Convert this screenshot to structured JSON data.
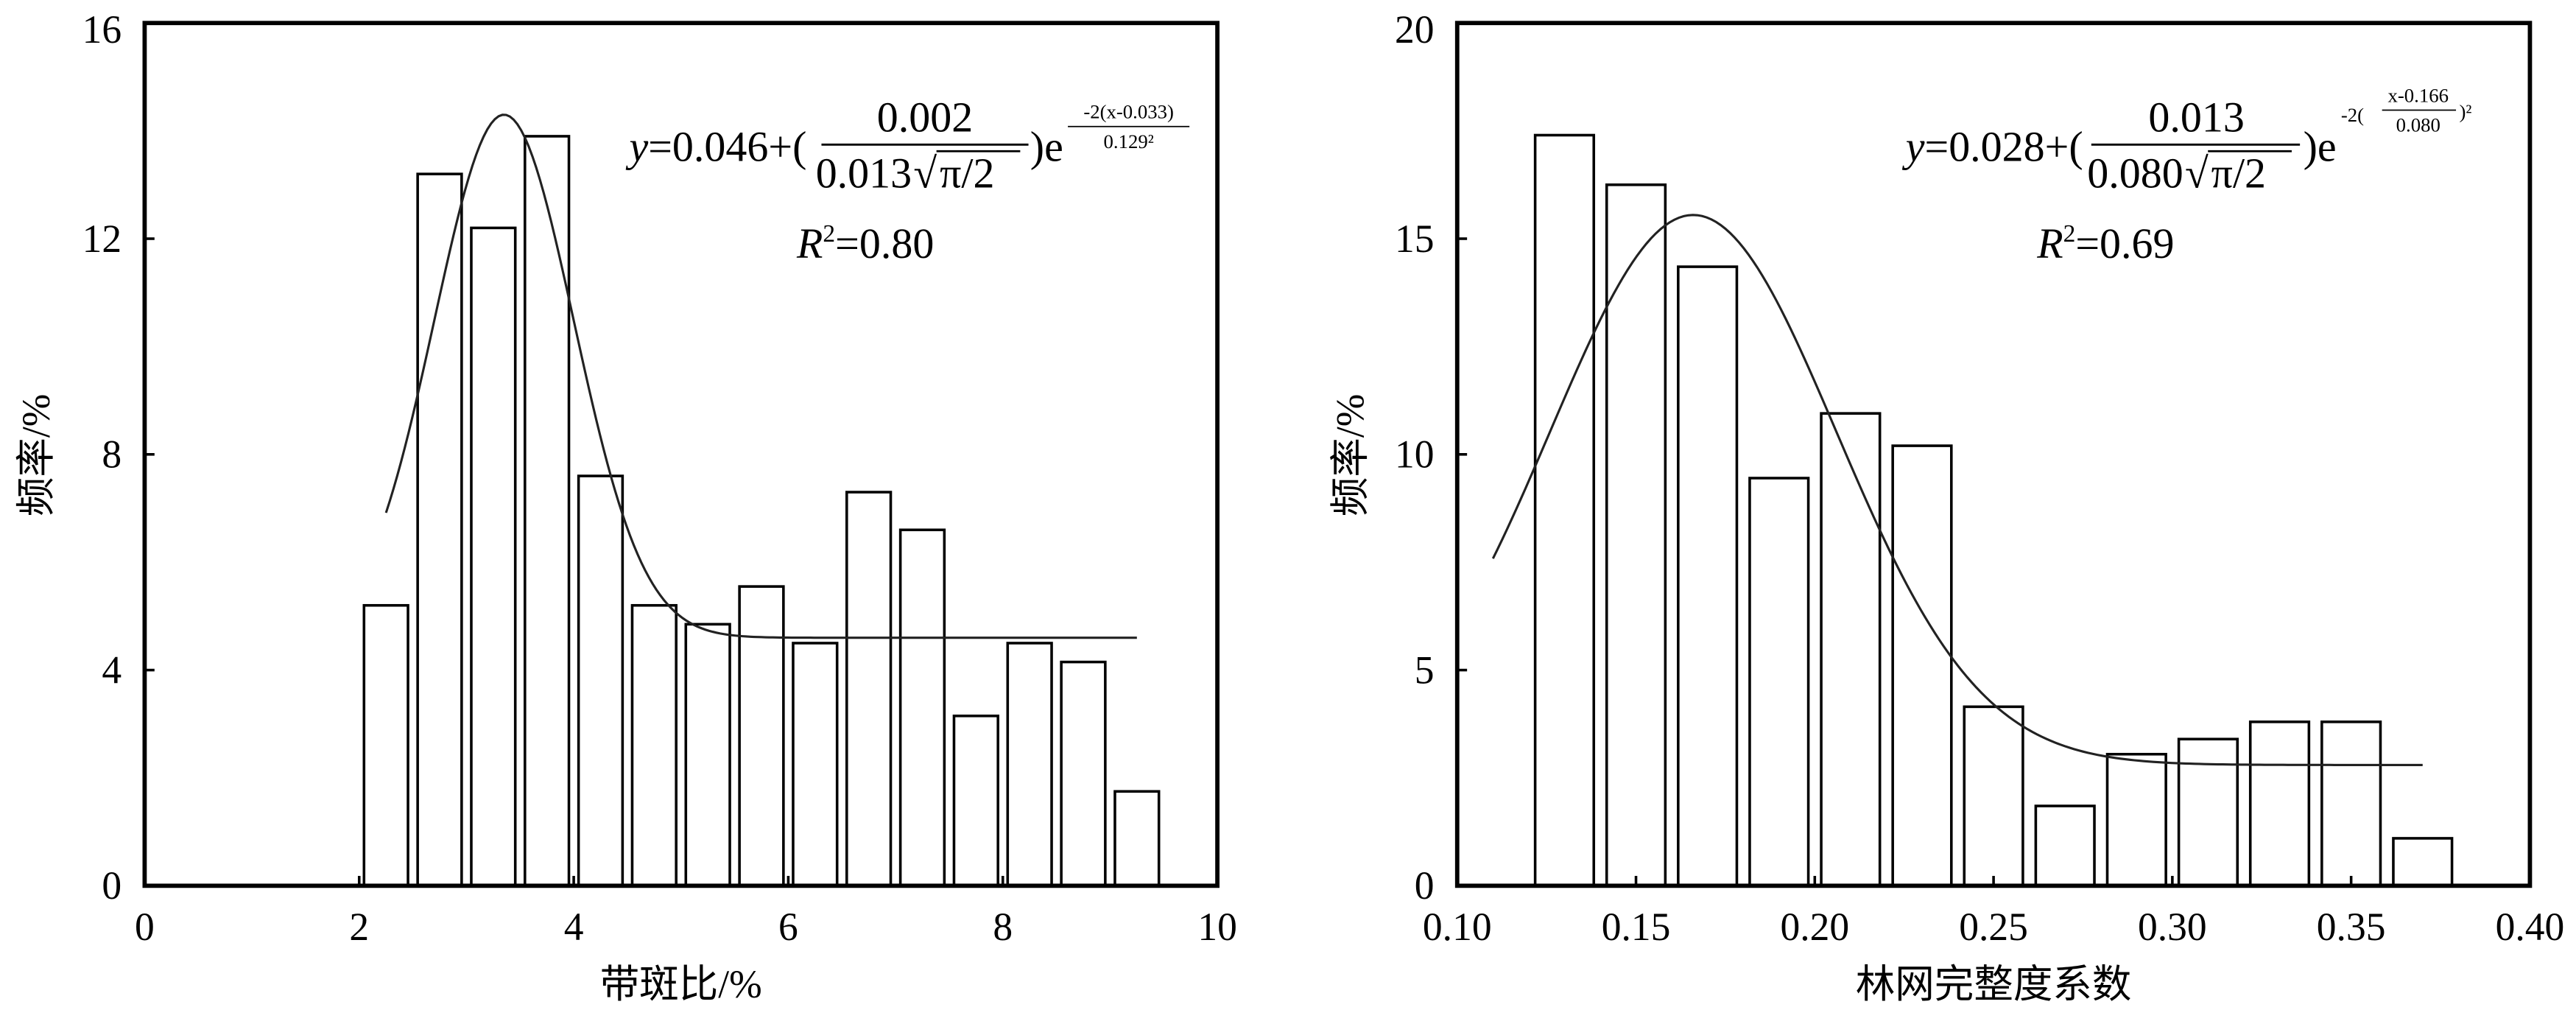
{
  "chart_data": [
    {
      "type": "bar",
      "xlabel": "带斑比/%",
      "ylabel": "频率/%",
      "xlim": [
        0,
        10
      ],
      "ylim": [
        0,
        16
      ],
      "xticks": [
        "0",
        "2",
        "4",
        "6",
        "8",
        "10"
      ],
      "yticks": [
        "0",
        "4",
        "8",
        "12",
        "16"
      ],
      "bin_width": 0.5,
      "bins_start": [
        2.0,
        2.5,
        3.0,
        3.5,
        4.0,
        4.5,
        5.0,
        5.5,
        6.0,
        6.5,
        7.0,
        7.5,
        8.0,
        8.5,
        9.0
      ],
      "values": [
        5.2,
        13.2,
        12.2,
        13.9,
        7.6,
        5.2,
        4.85,
        5.55,
        4.5,
        7.3,
        6.6,
        3.15,
        4.5,
        4.15,
        1.75
      ],
      "fit_curve": {
        "base": 4.6,
        "amp": 9.7,
        "center": 3.35,
        "width": 1.3,
        "x_range": [
          2.25,
          9.25
        ]
      },
      "equation": {
        "lhs": "y",
        "prefix": "=0.046+(",
        "numerator": "0.002",
        "denominator": "0.013",
        "radical": "π/2",
        "suffix": ")e",
        "exp_numerator": "-2(x-0.033)",
        "exp_denominator": "0.129²"
      },
      "r2": {
        "label": "R",
        "sup": "2",
        "value": "=0.80"
      }
    },
    {
      "type": "bar",
      "xlabel": "林网完整度系数",
      "ylabel": "频率/%",
      "xlim": [
        0.1,
        0.4
      ],
      "ylim": [
        0,
        20
      ],
      "xticks": [
        "0.10",
        "0.15",
        "0.20",
        "0.25",
        "0.30",
        "0.35",
        "0.40"
      ],
      "yticks": [
        "0",
        "5",
        "10",
        "15",
        "20"
      ],
      "bin_width": 0.02,
      "bins_start": [
        0.12,
        0.14,
        0.16,
        0.18,
        0.2,
        0.22,
        0.24,
        0.26,
        0.28,
        0.3,
        0.32,
        0.34,
        0.36
      ],
      "values": [
        17.4,
        16.25,
        14.35,
        9.45,
        10.95,
        10.2,
        4.15,
        1.85,
        3.05,
        3.4,
        3.8,
        3.8,
        1.1
      ],
      "fit_curve": {
        "base": 2.8,
        "amp": 12.75,
        "center": 0.166,
        "width": 0.08,
        "x_range": [
          0.11,
          0.37
        ]
      },
      "equation": {
        "lhs": "y",
        "prefix": "=0.028+(",
        "numerator": "0.013",
        "denominator": "0.080",
        "radical": "π/2",
        "suffix": ")e",
        "exp_prefix": "-2(",
        "exp_numerator": "x-0.166",
        "exp_denominator": "0.080",
        "exp_suffix": ")²"
      },
      "r2": {
        "label": "R",
        "sup": "2",
        "value": "=0.69"
      }
    }
  ]
}
